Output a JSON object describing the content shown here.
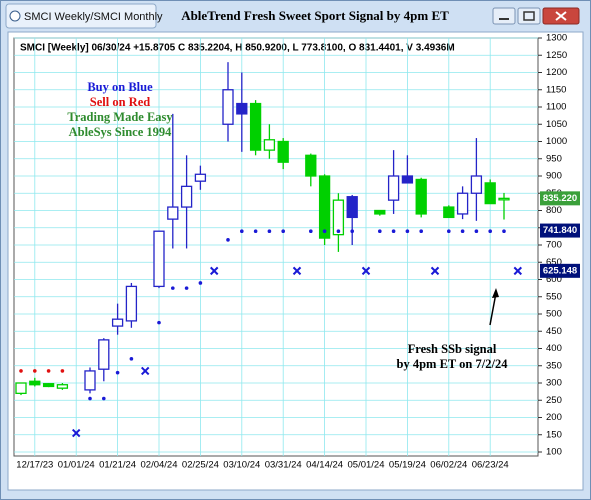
{
  "window": {
    "tab": "SMCI Weekly/SMCI Monthly",
    "title": "AbleTrend Fresh Sweet Sport Signal by 4pm ET"
  },
  "chart_data": {
    "type": "candlestick",
    "header": "SMCI [Weekly] 06/30/24 +15.8705 C 835.2204, H 850.9200, L 773.8100, O 831.4401, V 3.4936M",
    "notes": [
      {
        "text": "Buy on Blue",
        "color": "#1a1ad6"
      },
      {
        "text": "Sell on Red",
        "color": "#e01010"
      },
      {
        "text": "Trading Made Easy",
        "color": "#2e8b2e"
      },
      {
        "text": "AbleSys Since 1994",
        "color": "#2e8b2e"
      }
    ],
    "annotation": [
      "Fresh SSb signal",
      "by 4pm ET on 7/2/24"
    ],
    "categories": [
      null,
      "12/17/23",
      null,
      null,
      "01/01/24",
      null,
      null,
      "01/21/24",
      null,
      null,
      "02/04/24",
      null,
      null,
      "02/25/24",
      null,
      null,
      "03/10/24",
      null,
      null,
      "03/31/24",
      null,
      null,
      "04/14/24",
      null,
      null,
      "05/01/24",
      null,
      null,
      "05/19/24",
      null,
      null,
      "06/02/24",
      null,
      null,
      "06/23/24",
      null,
      null
    ],
    "open": [
      270,
      305,
      298,
      285,
      null,
      280,
      340,
      465,
      480,
      null,
      580,
      775,
      810,
      885,
      null,
      1050,
      1110,
      1110,
      975,
      1000,
      null,
      960,
      900,
      730,
      840,
      null,
      800,
      830,
      900,
      890,
      null,
      810,
      790,
      850,
      880,
      831.4401,
      null
    ],
    "high": [
      300,
      315,
      300,
      300,
      null,
      345,
      430,
      530,
      590,
      null,
      740,
      1080,
      960,
      930,
      null,
      1230,
      1200,
      1120,
      1050,
      1010,
      null,
      965,
      905,
      850,
      845,
      null,
      800,
      975,
      960,
      895,
      null,
      815,
      870,
      1010,
      890,
      850.92,
      null
    ],
    "low": [
      265,
      290,
      288,
      280,
      null,
      270,
      305,
      440,
      460,
      null,
      575,
      690,
      690,
      860,
      null,
      1000,
      970,
      960,
      950,
      920,
      null,
      870,
      700,
      680,
      700,
      null,
      785,
      790,
      880,
      780,
      null,
      780,
      775,
      770,
      820,
      773.81,
      null
    ],
    "close": [
      300,
      295,
      290,
      295,
      null,
      335,
      425,
      485,
      580,
      null,
      740,
      810,
      870,
      905,
      null,
      1150,
      1080,
      975,
      1005,
      940,
      null,
      900,
      720,
      830,
      780,
      null,
      790,
      900,
      880,
      790,
      null,
      780,
      850,
      900,
      820,
      835.2204,
      null
    ],
    "colors": [
      "#00d000",
      "#00d000",
      "#00d000",
      "#00d000",
      null,
      "#2424c8",
      "#2424c8",
      "#2424c8",
      "#2424c8",
      null,
      "#2424c8",
      "#2424c8",
      "#2424c8",
      "#2424c8",
      null,
      "#2424c8",
      "#2424c8",
      "#00d000",
      "#00d000",
      "#00d000",
      null,
      "#00d000",
      "#00d000",
      "#00d000",
      "#2424c8",
      null,
      "#00d000",
      "#2424c8",
      "#2424c8",
      "#00d000",
      null,
      "#00d000",
      "#2424c8",
      "#2424c8",
      "#00d000",
      "#00d000",
      null
    ],
    "red_dots": {
      "color": "#e01010",
      "values": [
        335,
        335,
        335,
        335,
        null,
        null,
        null,
        null,
        null,
        null,
        null,
        null,
        null,
        null,
        null,
        null,
        null,
        null,
        null,
        null,
        null,
        null,
        null,
        null,
        null,
        null,
        null,
        null,
        null,
        null,
        null,
        null,
        null,
        null,
        null,
        null,
        null
      ]
    },
    "blue_dots": {
      "color": "#1a1ad6",
      "values": [
        null,
        null,
        null,
        null,
        null,
        255,
        255,
        330,
        370,
        null,
        475,
        575,
        575,
        590,
        null,
        715,
        740,
        740,
        740,
        740,
        null,
        740,
        740,
        740,
        740,
        null,
        740,
        740,
        740,
        740,
        null,
        740,
        740,
        740,
        740,
        740,
        null
      ]
    },
    "x_marks": {
      "color": "#1a1ad6",
      "values": [
        null,
        null,
        null,
        null,
        155,
        null,
        null,
        null,
        null,
        335,
        null,
        null,
        null,
        null,
        625,
        null,
        null,
        null,
        null,
        null,
        625,
        null,
        null,
        null,
        null,
        625,
        null,
        null,
        null,
        null,
        625,
        null,
        null,
        null,
        null,
        null,
        625
      ]
    },
    "price_tags": [
      {
        "value": 835.22,
        "label": "835.220",
        "color": "#3aa03a"
      },
      {
        "value": 741.84,
        "label": "741.840",
        "color": "#00107a"
      },
      {
        "value": 625.148,
        "label": "625.148",
        "color": "#00107a"
      }
    ],
    "ylim": [
      100,
      1300
    ],
    "yticks": [
      100,
      150,
      200,
      250,
      300,
      350,
      400,
      450,
      500,
      550,
      600,
      650,
      700,
      750,
      800,
      850,
      900,
      950,
      1000,
      1050,
      1100,
      1150,
      1200,
      1250,
      1300
    ],
    "grid": true
  }
}
